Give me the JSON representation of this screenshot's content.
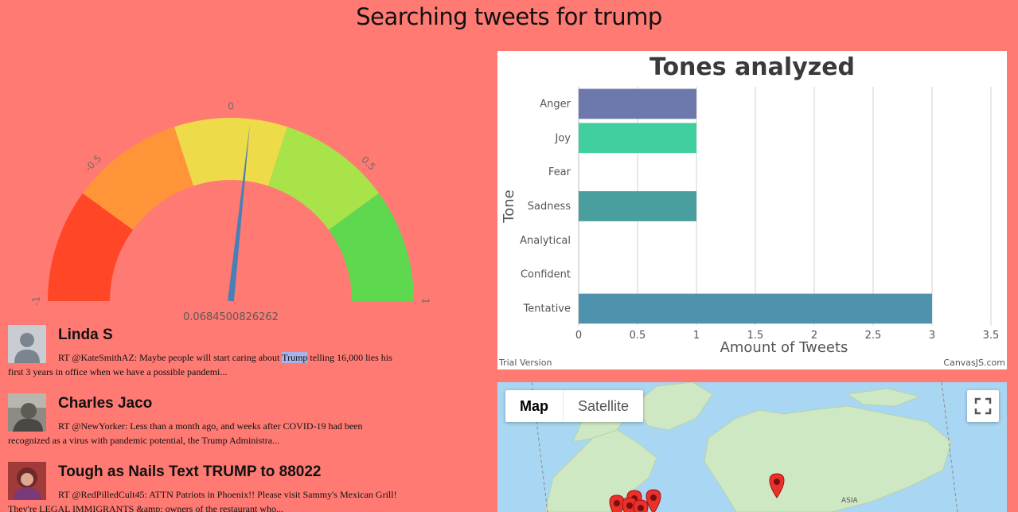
{
  "header": {
    "title": "Searching tweets for trump"
  },
  "gauge": {
    "value": 0.0684500826262,
    "value_label": "0.0684500826262",
    "min": -1,
    "max": 1,
    "tick_labels": [
      "-1",
      "-0.5",
      "0",
      "0.5",
      "1"
    ],
    "needle_color": "#4a7fb6",
    "segment_colors": [
      "#ff4626",
      "#ff9438",
      "#eddb4a",
      "#a9e34a",
      "#5dd84f"
    ]
  },
  "tweets": [
    {
      "name": "Linda S",
      "text_before": "RT @KateSmithAZ: Maybe people will start caring about ",
      "highlight": "Trump",
      "text_after": " telling 16,000 lies his first 3 years in office when we have a possible pandemi..."
    },
    {
      "name": "Charles Jaco",
      "text_before": "RT @NewYorker: Less than a month ago, and weeks after COVID-19 had been recognized as a virus with pandemic potential, the Trump Administra...",
      "highlight": "",
      "text_after": ""
    },
    {
      "name": "Tough as Nails Text TRUMP to 88022",
      "text_before": "RT @RedPilledCult45: ATTN Patriots in Phoenix!! Please visit Sammy's Mexican Grill! They're LEGAL IMMIGRANTS &amp; owners of the restaurant who...",
      "highlight": "",
      "text_after": ""
    }
  ],
  "chart_data": {
    "type": "bar",
    "orientation": "horizontal",
    "title": "Tones analyzed",
    "xlabel": "Amount of Tweets",
    "ylabel": "Tone",
    "categories": [
      "Anger",
      "Joy",
      "Fear",
      "Sadness",
      "Analytical",
      "Confident",
      "Tentative"
    ],
    "values": [
      1,
      1,
      0,
      1,
      0,
      0,
      3
    ],
    "colors": [
      "#6d78ad",
      "#41cfa0",
      "#e8b34c",
      "#4a9f9e",
      "#6b8fc8",
      "#d66",
      "#4f92ad"
    ],
    "xlim": [
      0,
      3.5
    ],
    "x_ticks": [
      "0",
      "0.5",
      "1",
      "1.5",
      "2",
      "2.5",
      "3",
      "3.5"
    ],
    "grid": true,
    "footer_left": "Trial Version",
    "footer_right": "CanvasJS.com"
  },
  "map": {
    "map_button": "Map",
    "satellite_button": "Satellite",
    "region_label": "ASIA",
    "land_color": "#cfe8c4",
    "water_color": "#a9d6f2",
    "marker_color": "#e8312a"
  }
}
